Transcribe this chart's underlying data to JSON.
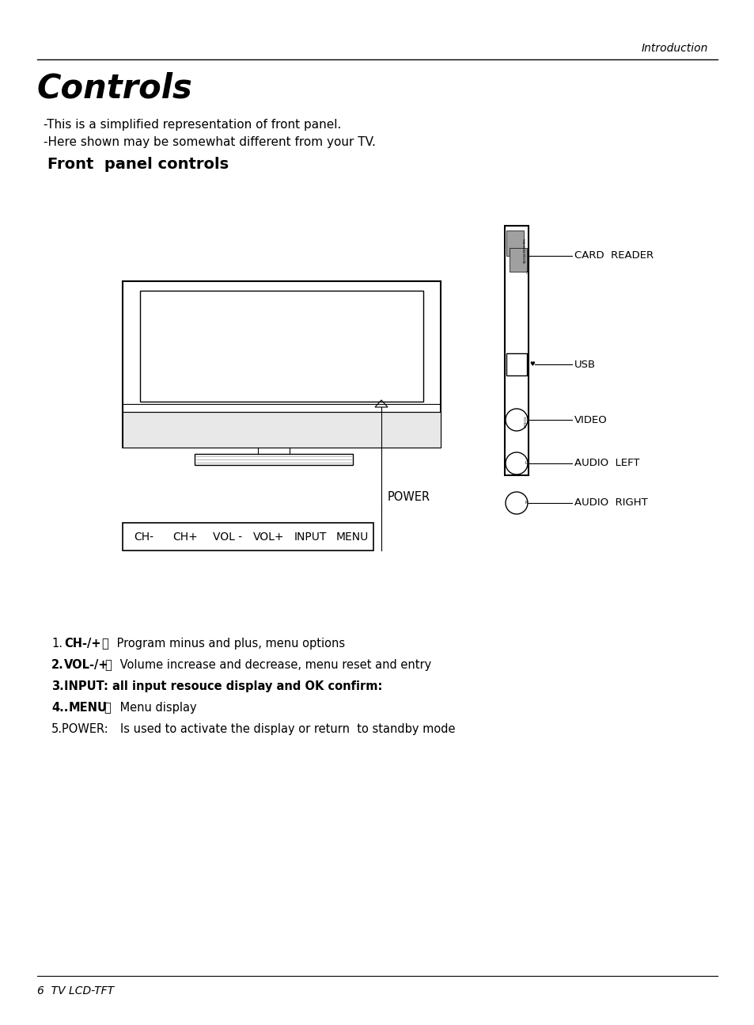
{
  "page_title": "Introduction",
  "section_title": "Controls",
  "subtitle1": "-This is a simplified representation of front panel.",
  "subtitle2": "-Here shown may be somewhat different from your TV.",
  "subsection_title": "Front  panel controls",
  "footer": "6  TV LCD-TFT",
  "label_power": "POWER",
  "label_card_reader": "CARD  READER",
  "label_usb": "USB",
  "label_video": "VIDEO",
  "label_audio_left": "AUDIO  LEFT",
  "label_audio_right": "AUDIO  RIGHT",
  "bg_color": "#ffffff",
  "text_color": "#000000"
}
